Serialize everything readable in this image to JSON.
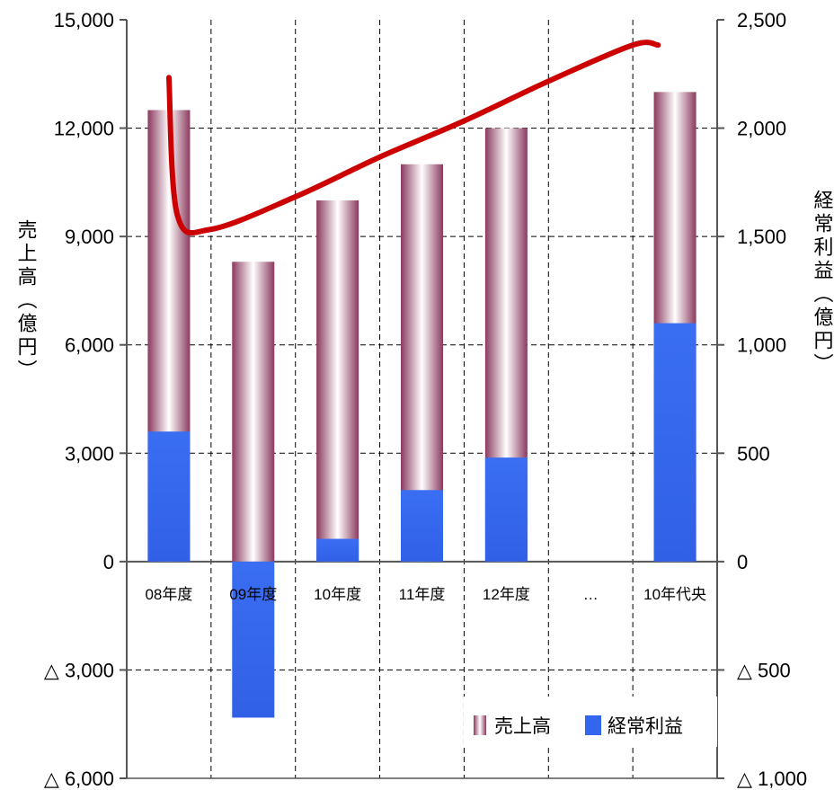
{
  "chart_data": {
    "type": "bar",
    "categories": [
      "08年度",
      "09年度",
      "10年度",
      "11年度",
      "12年度",
      "…",
      "10年代央"
    ],
    "series": [
      {
        "name": "売上高",
        "axis": "left",
        "values": [
          12500,
          8300,
          10000,
          11000,
          12000,
          null,
          13000
        ],
        "color": "#8b3a5e"
      },
      {
        "name": "経常利益",
        "axis": "right",
        "values": [
          600,
          -720,
          105,
          330,
          480,
          null,
          1100
        ],
        "color": "#3366ee"
      }
    ],
    "left_axis": {
      "label": "売上高（億円）",
      "range": [
        -6000,
        15000
      ],
      "ticks": [
        {
          "value": 15000,
          "label": "15,000"
        },
        {
          "value": 12000,
          "label": "12,000"
        },
        {
          "value": 9000,
          "label": "9,000"
        },
        {
          "value": 6000,
          "label": "6,000"
        },
        {
          "value": 3000,
          "label": "3,000"
        },
        {
          "value": 0,
          "label": "0"
        },
        {
          "value": -3000,
          "label": "△ 3,000"
        },
        {
          "value": -6000,
          "label": "△ 6,000"
        }
      ]
    },
    "right_axis": {
      "label": "経常利益（億円）",
      "range": [
        -1000,
        2500
      ],
      "ticks": [
        {
          "value": 2500,
          "label": "2,500"
        },
        {
          "value": 2000,
          "label": "2,000"
        },
        {
          "value": 1500,
          "label": "1,500"
        },
        {
          "value": 1000,
          "label": "1,000"
        },
        {
          "value": 500,
          "label": "500"
        },
        {
          "value": 0,
          "label": "0"
        },
        {
          "value": -500,
          "label": "△ 500"
        },
        {
          "value": -1000,
          "label": "△ 1,000"
        }
      ]
    },
    "trend_curve": {
      "axis": "left",
      "color": "#cc0000",
      "points": [
        [
          0.5,
          13400
        ],
        [
          0.6,
          9600
        ],
        [
          1.0,
          9200
        ],
        [
          2.0,
          10100
        ],
        [
          3.0,
          11200
        ],
        [
          4.0,
          12200
        ],
        [
          5.0,
          13300
        ],
        [
          6.0,
          14300
        ],
        [
          6.3,
          14300
        ]
      ]
    },
    "grid": true,
    "legend": "bottom-right"
  }
}
